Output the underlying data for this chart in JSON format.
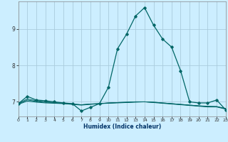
{
  "title": "",
  "xlabel": "Humidex (Indice chaleur)",
  "ylabel": "",
  "background_color": "#cceeff",
  "grid_color": "#aaccdd",
  "line_color": "#006666",
  "x": [
    0,
    1,
    2,
    3,
    4,
    5,
    6,
    7,
    8,
    9,
    10,
    11,
    12,
    13,
    14,
    15,
    16,
    17,
    18,
    19,
    20,
    21,
    22,
    23
  ],
  "lines": [
    [
      6.95,
      7.15,
      7.05,
      7.03,
      7.0,
      6.97,
      6.95,
      6.75,
      6.85,
      6.95,
      7.4,
      8.45,
      8.85,
      9.35,
      9.58,
      9.1,
      8.72,
      8.5,
      7.85,
      7.0,
      6.97,
      6.97,
      7.05,
      6.78
    ],
    [
      6.95,
      7.08,
      7.03,
      7.0,
      6.98,
      6.96,
      6.94,
      6.92,
      6.94,
      6.95,
      6.97,
      6.98,
      6.99,
      7.0,
      7.0,
      6.99,
      6.97,
      6.95,
      6.93,
      6.91,
      6.89,
      6.88,
      6.87,
      6.82
    ],
    [
      6.94,
      7.05,
      7.01,
      6.99,
      6.97,
      6.96,
      6.94,
      6.92,
      6.94,
      6.95,
      6.97,
      6.98,
      6.99,
      7.0,
      7.0,
      6.99,
      6.97,
      6.95,
      6.93,
      6.91,
      6.89,
      6.87,
      6.87,
      6.81
    ],
    [
      6.93,
      7.02,
      6.99,
      6.97,
      6.96,
      6.95,
      6.93,
      6.91,
      6.93,
      6.95,
      6.96,
      6.97,
      6.98,
      6.99,
      7.0,
      6.98,
      6.96,
      6.94,
      6.92,
      6.9,
      6.88,
      6.86,
      6.86,
      6.8
    ]
  ],
  "yticks": [
    7,
    8,
    9
  ],
  "xticks": [
    0,
    1,
    2,
    3,
    4,
    5,
    6,
    7,
    8,
    9,
    10,
    11,
    12,
    13,
    14,
    15,
    16,
    17,
    18,
    19,
    20,
    21,
    22,
    23
  ],
  "ylim": [
    6.6,
    9.75
  ],
  "xlim": [
    0,
    23
  ]
}
